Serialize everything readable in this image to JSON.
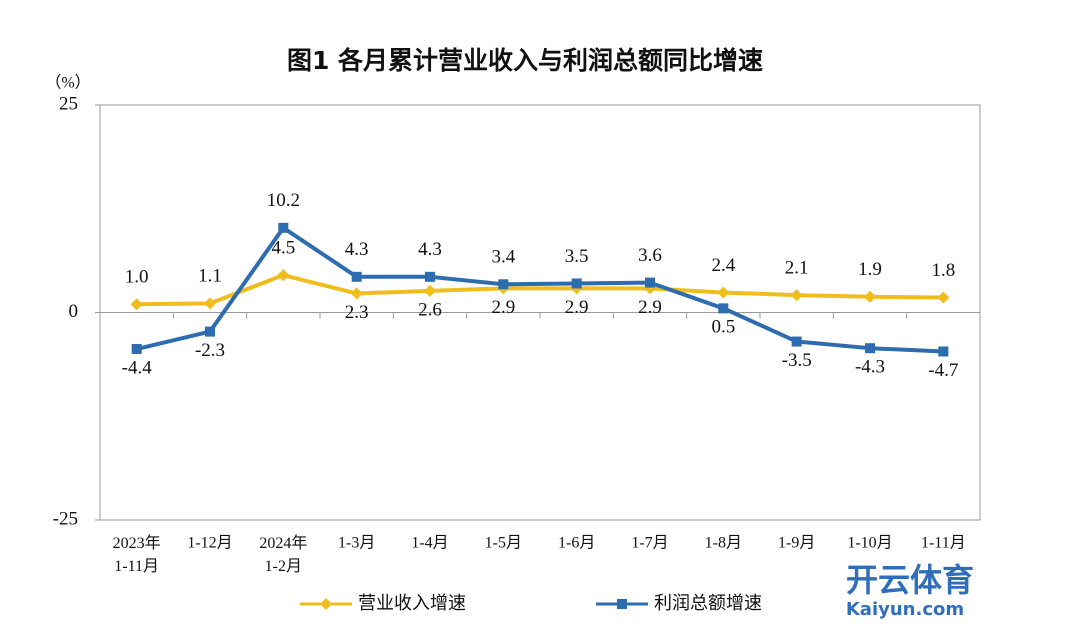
{
  "chart_data": {
    "type": "line",
    "title": "图1  各月累计营业收入与利润总额同比增速",
    "y_unit": "（%）",
    "categories": [
      "2023年\n1-11月",
      "1-12月",
      "2024年\n1-2月",
      "1-3月",
      "1-4月",
      "1-5月",
      "1-6月",
      "1-7月",
      "1-8月",
      "1-9月",
      "1-10月",
      "1-11月"
    ],
    "series": [
      {
        "name": "营业收入增速",
        "color": "#f0bd1e",
        "marker": "diamond",
        "values": [
          1.0,
          1.1,
          4.5,
          2.3,
          2.6,
          2.9,
          2.9,
          2.9,
          2.4,
          2.1,
          1.9,
          1.8
        ],
        "value_labels": [
          "1.0",
          "1.1",
          "4.5",
          "2.3",
          "2.6",
          "2.9",
          "2.9",
          "2.9",
          "2.4",
          "2.1",
          "1.9",
          "1.8"
        ]
      },
      {
        "name": "利润总额增速",
        "color": "#2e6cb0",
        "marker": "square",
        "values": [
          -4.4,
          -2.3,
          10.2,
          4.3,
          4.3,
          3.4,
          3.5,
          3.6,
          0.5,
          -3.5,
          -4.3,
          -4.7
        ],
        "value_labels": [
          "-4.4",
          "-2.3",
          "10.2",
          "4.3",
          "4.3",
          "3.4",
          "3.5",
          "3.6",
          "0.5",
          "-3.5",
          "-4.3",
          "-4.7"
        ]
      }
    ],
    "ylim": [
      -25,
      25
    ],
    "yticks": [
      -25,
      0,
      25
    ],
    "grid": false,
    "watermark": [
      "开云体育",
      "Kaiyun.com"
    ]
  }
}
